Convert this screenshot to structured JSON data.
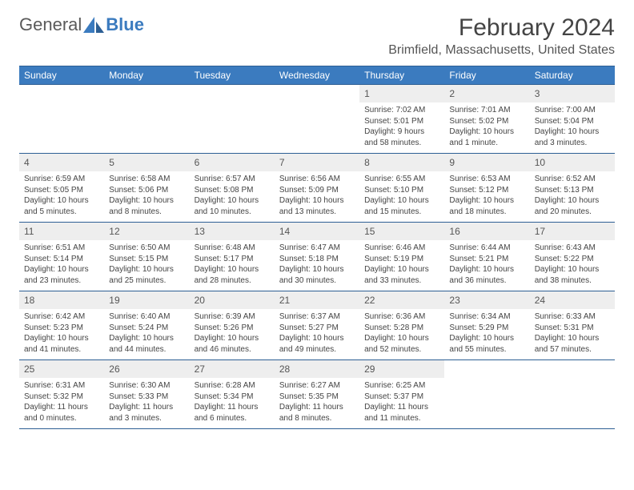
{
  "logo": {
    "text1": "General",
    "text2": "Blue"
  },
  "title": "February 2024",
  "location": "Brimfield, Massachusetts, United States",
  "colors": {
    "header_bg": "#3b7bbf",
    "header_text": "#ffffff",
    "border": "#2d5f94",
    "daynum_bg": "#eeeeee",
    "text": "#444444",
    "logo_gray": "#5a5a5a",
    "logo_blue": "#3b7bbf"
  },
  "dayNames": [
    "Sunday",
    "Monday",
    "Tuesday",
    "Wednesday",
    "Thursday",
    "Friday",
    "Saturday"
  ],
  "firstDayIndex": 4,
  "daysInMonth": 29,
  "days": {
    "1": {
      "sunrise": "7:02 AM",
      "sunset": "5:01 PM",
      "daylight": "9 hours and 58 minutes."
    },
    "2": {
      "sunrise": "7:01 AM",
      "sunset": "5:02 PM",
      "daylight": "10 hours and 1 minute."
    },
    "3": {
      "sunrise": "7:00 AM",
      "sunset": "5:04 PM",
      "daylight": "10 hours and 3 minutes."
    },
    "4": {
      "sunrise": "6:59 AM",
      "sunset": "5:05 PM",
      "daylight": "10 hours and 5 minutes."
    },
    "5": {
      "sunrise": "6:58 AM",
      "sunset": "5:06 PM",
      "daylight": "10 hours and 8 minutes."
    },
    "6": {
      "sunrise": "6:57 AM",
      "sunset": "5:08 PM",
      "daylight": "10 hours and 10 minutes."
    },
    "7": {
      "sunrise": "6:56 AM",
      "sunset": "5:09 PM",
      "daylight": "10 hours and 13 minutes."
    },
    "8": {
      "sunrise": "6:55 AM",
      "sunset": "5:10 PM",
      "daylight": "10 hours and 15 minutes."
    },
    "9": {
      "sunrise": "6:53 AM",
      "sunset": "5:12 PM",
      "daylight": "10 hours and 18 minutes."
    },
    "10": {
      "sunrise": "6:52 AM",
      "sunset": "5:13 PM",
      "daylight": "10 hours and 20 minutes."
    },
    "11": {
      "sunrise": "6:51 AM",
      "sunset": "5:14 PM",
      "daylight": "10 hours and 23 minutes."
    },
    "12": {
      "sunrise": "6:50 AM",
      "sunset": "5:15 PM",
      "daylight": "10 hours and 25 minutes."
    },
    "13": {
      "sunrise": "6:48 AM",
      "sunset": "5:17 PM",
      "daylight": "10 hours and 28 minutes."
    },
    "14": {
      "sunrise": "6:47 AM",
      "sunset": "5:18 PM",
      "daylight": "10 hours and 30 minutes."
    },
    "15": {
      "sunrise": "6:46 AM",
      "sunset": "5:19 PM",
      "daylight": "10 hours and 33 minutes."
    },
    "16": {
      "sunrise": "6:44 AM",
      "sunset": "5:21 PM",
      "daylight": "10 hours and 36 minutes."
    },
    "17": {
      "sunrise": "6:43 AM",
      "sunset": "5:22 PM",
      "daylight": "10 hours and 38 minutes."
    },
    "18": {
      "sunrise": "6:42 AM",
      "sunset": "5:23 PM",
      "daylight": "10 hours and 41 minutes."
    },
    "19": {
      "sunrise": "6:40 AM",
      "sunset": "5:24 PM",
      "daylight": "10 hours and 44 minutes."
    },
    "20": {
      "sunrise": "6:39 AM",
      "sunset": "5:26 PM",
      "daylight": "10 hours and 46 minutes."
    },
    "21": {
      "sunrise": "6:37 AM",
      "sunset": "5:27 PM",
      "daylight": "10 hours and 49 minutes."
    },
    "22": {
      "sunrise": "6:36 AM",
      "sunset": "5:28 PM",
      "daylight": "10 hours and 52 minutes."
    },
    "23": {
      "sunrise": "6:34 AM",
      "sunset": "5:29 PM",
      "daylight": "10 hours and 55 minutes."
    },
    "24": {
      "sunrise": "6:33 AM",
      "sunset": "5:31 PM",
      "daylight": "10 hours and 57 minutes."
    },
    "25": {
      "sunrise": "6:31 AM",
      "sunset": "5:32 PM",
      "daylight": "11 hours and 0 minutes."
    },
    "26": {
      "sunrise": "6:30 AM",
      "sunset": "5:33 PM",
      "daylight": "11 hours and 3 minutes."
    },
    "27": {
      "sunrise": "6:28 AM",
      "sunset": "5:34 PM",
      "daylight": "11 hours and 6 minutes."
    },
    "28": {
      "sunrise": "6:27 AM",
      "sunset": "5:35 PM",
      "daylight": "11 hours and 8 minutes."
    },
    "29": {
      "sunrise": "6:25 AM",
      "sunset": "5:37 PM",
      "daylight": "11 hours and 11 minutes."
    }
  },
  "labels": {
    "sunrise": "Sunrise: ",
    "sunset": "Sunset: ",
    "daylight": "Daylight: "
  }
}
